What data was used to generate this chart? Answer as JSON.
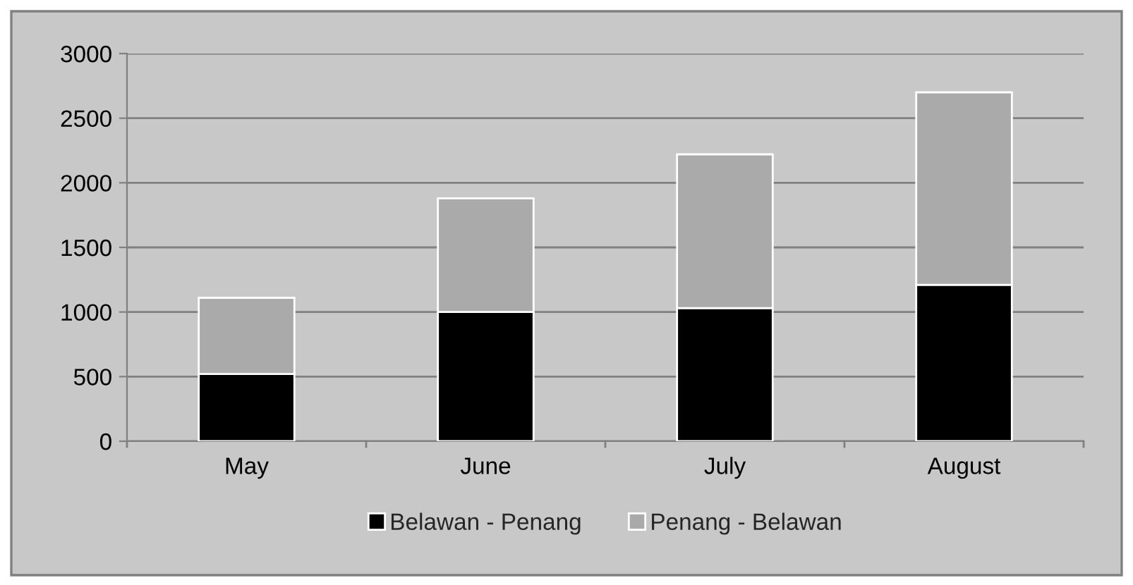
{
  "chart_data": {
    "type": "bar",
    "stacked": true,
    "categories": [
      "May",
      "June",
      "July",
      "August"
    ],
    "series": [
      {
        "name": "Belawan - Penang",
        "color": "#000000",
        "values": [
          520,
          1000,
          1030,
          1210
        ]
      },
      {
        "name": "Penang - Belawan",
        "color": "#aaaaaa",
        "values": [
          590,
          880,
          1190,
          1490
        ]
      }
    ],
    "ylim": [
      0,
      3000
    ],
    "yticks": [
      0,
      500,
      1000,
      1500,
      2000,
      2500,
      3000
    ],
    "grid": "y",
    "legend": "bottom"
  }
}
